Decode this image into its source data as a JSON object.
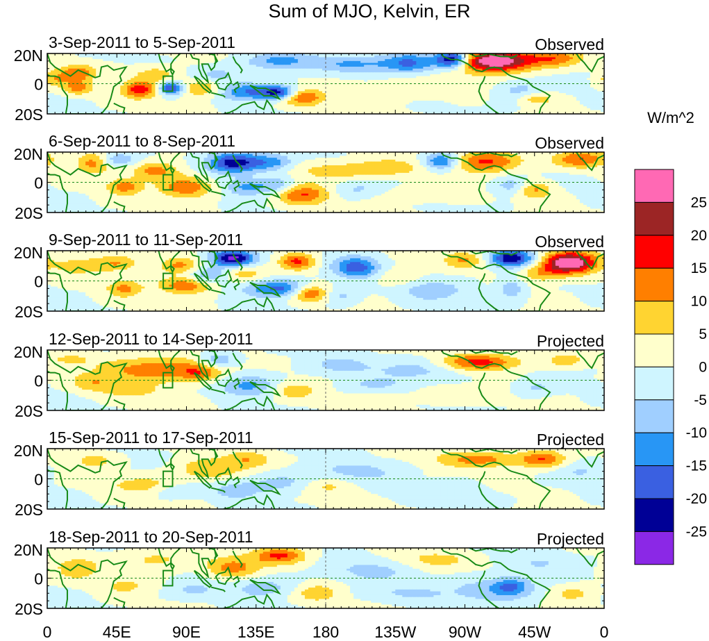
{
  "chart_data": {
    "type": "heatmap",
    "title": "Sum of MJO, Kelvin, ER",
    "x_tick_labels": [
      "0",
      "45E",
      "90E",
      "135E",
      "180",
      "135W",
      "90W",
      "45W",
      "0"
    ],
    "x_range_deg_east": [
      0,
      360
    ],
    "y_tick_labels": [
      "20N",
      "0",
      "20S"
    ],
    "y_range_deg": [
      -20,
      20
    ],
    "colorbar": {
      "unit": "W/m^2",
      "tick_labels": [
        "25",
        "20",
        "15",
        "10",
        "5",
        "0",
        "-5",
        "-10",
        "-15",
        "-20",
        "-25"
      ],
      "levels": [
        25,
        20,
        15,
        10,
        5,
        0,
        -5,
        -10,
        -15,
        -20,
        -25
      ],
      "colors": [
        "#ff69b4",
        "#9c2525",
        "#ff0000",
        "#ff7f00",
        "#ffd431",
        "#ffffcc",
        "#cff5ff",
        "#a0cfff",
        "#2896f5",
        "#3a60e1",
        "#000096",
        "#8b28e6"
      ]
    },
    "panels": [
      {
        "date_range": "3-Sep-2011 to 5-Sep-2011",
        "type_label": "Observed",
        "blobs": [
          [
            262,
            16,
            8,
            4,
            -30
          ],
          [
            290,
            15,
            18,
            5,
            32
          ],
          [
            235,
            14,
            12,
            5,
            -15
          ],
          [
            150,
            15,
            15,
            4,
            -12
          ],
          [
            200,
            13,
            20,
            4,
            -10
          ],
          [
            20,
            7,
            8,
            4,
            14
          ],
          [
            80,
            -3,
            6,
            3,
            -22
          ],
          [
            60,
            -4,
            8,
            4,
            18
          ],
          [
            100,
            -3,
            10,
            4,
            13
          ],
          [
            130,
            -5,
            15,
            4,
            -15
          ],
          [
            150,
            -6,
            8,
            3,
            -18
          ],
          [
            165,
            -9,
            10,
            4,
            15
          ],
          [
            70,
            6,
            10,
            4,
            9
          ],
          [
            330,
            17,
            12,
            4,
            12
          ],
          [
            305,
            -5,
            10,
            5,
            -8
          ],
          [
            315,
            -10,
            8,
            3,
            9
          ],
          [
            240,
            -2,
            25,
            6,
            4
          ],
          [
            20,
            -3,
            6,
            3,
            12
          ],
          [
            5,
            3,
            6,
            4,
            8
          ],
          [
            110,
            6,
            10,
            4,
            -7
          ]
        ]
      },
      {
        "date_range": "6-Sep-2011 to 8-Sep-2011",
        "type_label": "Observed",
        "blobs": [
          [
            120,
            13,
            12,
            5,
            -23
          ],
          [
            145,
            13,
            10,
            4,
            -12
          ],
          [
            255,
            14,
            8,
            4,
            -18
          ],
          [
            285,
            14,
            16,
            5,
            16
          ],
          [
            345,
            15,
            12,
            4,
            15
          ],
          [
            70,
            8,
            10,
            4,
            13
          ],
          [
            90,
            -3,
            12,
            5,
            15
          ],
          [
            50,
            -3,
            8,
            4,
            12
          ],
          [
            165,
            -8,
            12,
            5,
            15
          ],
          [
            130,
            -3,
            10,
            4,
            -12
          ],
          [
            150,
            -2,
            8,
            4,
            -9
          ],
          [
            190,
            8,
            20,
            4,
            9
          ],
          [
            225,
            10,
            15,
            4,
            7
          ],
          [
            30,
            13,
            8,
            5,
            12
          ],
          [
            315,
            -5,
            8,
            4,
            11
          ],
          [
            300,
            -2,
            8,
            4,
            -9
          ],
          [
            200,
            -5,
            12,
            4,
            -6
          ],
          [
            45,
            15,
            8,
            3,
            -10
          ],
          [
            240,
            -8,
            20,
            4,
            4
          ]
        ]
      },
      {
        "date_range": "9-Sep-2011 to 11-Sep-2011",
        "type_label": "Observed",
        "blobs": [
          [
            120,
            15,
            10,
            4,
            -27
          ],
          [
            300,
            15,
            10,
            4,
            -24
          ],
          [
            338,
            12,
            12,
            5,
            32
          ],
          [
            162,
            13,
            8,
            4,
            16
          ],
          [
            200,
            9,
            10,
            5,
            -18
          ],
          [
            270,
            14,
            10,
            4,
            10
          ],
          [
            90,
            -3,
            12,
            4,
            15
          ],
          [
            150,
            -5,
            15,
            4,
            -17
          ],
          [
            170,
            -8,
            8,
            4,
            17
          ],
          [
            50,
            -5,
            8,
            4,
            11
          ],
          [
            45,
            12,
            10,
            4,
            10
          ],
          [
            85,
            10,
            10,
            4,
            12
          ],
          [
            105,
            4,
            10,
            4,
            -10
          ],
          [
            125,
            5,
            10,
            4,
            8
          ],
          [
            250,
            -6,
            15,
            5,
            -8
          ],
          [
            300,
            -5,
            6,
            5,
            -9
          ],
          [
            320,
            5,
            10,
            4,
            9
          ],
          [
            225,
            2,
            10,
            4,
            6
          ],
          [
            20,
            10,
            10,
            4,
            8
          ],
          [
            190,
            -10,
            8,
            4,
            -6
          ]
        ]
      },
      {
        "date_range": "12-Sep-2011 to 14-Sep-2011",
        "type_label": "Projected",
        "blobs": [
          [
            70,
            7,
            25,
            6,
            14
          ],
          [
            100,
            5,
            10,
            4,
            10
          ],
          [
            130,
            -3,
            12,
            5,
            -12
          ],
          [
            110,
            13,
            8,
            4,
            -11
          ],
          [
            280,
            12,
            18,
            4,
            17
          ],
          [
            240,
            7,
            20,
            5,
            -7
          ],
          [
            190,
            10,
            15,
            4,
            -6
          ],
          [
            315,
            -5,
            10,
            4,
            -6
          ],
          [
            30,
            -2,
            10,
            4,
            8
          ],
          [
            55,
            -7,
            12,
            3,
            7
          ],
          [
            160,
            -7,
            10,
            4,
            8
          ],
          [
            335,
            13,
            8,
            3,
            9
          ],
          [
            265,
            -10,
            20,
            4,
            5
          ],
          [
            210,
            -3,
            15,
            3,
            -5
          ],
          [
            15,
            14,
            10,
            3,
            6
          ]
        ]
      },
      {
        "date_range": "15-Sep-2011 to 17-Sep-2011",
        "type_label": "Projected",
        "blobs": [
          [
            105,
            6,
            15,
            5,
            10
          ],
          [
            130,
            13,
            10,
            4,
            9
          ],
          [
            150,
            -3,
            20,
            5,
            -7
          ],
          [
            280,
            13,
            20,
            4,
            12
          ],
          [
            320,
            13,
            10,
            4,
            14
          ],
          [
            60,
            -4,
            15,
            4,
            7
          ],
          [
            30,
            12,
            10,
            4,
            7
          ],
          [
            200,
            5,
            20,
            5,
            -6
          ],
          [
            180,
            -5,
            12,
            4,
            7
          ],
          [
            250,
            -8,
            20,
            4,
            -4
          ],
          [
            120,
            -8,
            10,
            4,
            -6
          ],
          [
            345,
            5,
            10,
            4,
            -5
          ],
          [
            85,
            -8,
            10,
            3,
            -5
          ]
        ]
      },
      {
        "date_range": "18-Sep-2011 to 20-Sep-2011",
        "type_label": "Projected",
        "blobs": [
          [
            150,
            15,
            12,
            4,
            16
          ],
          [
            120,
            7,
            12,
            5,
            12
          ],
          [
            70,
            12,
            15,
            5,
            7
          ],
          [
            20,
            7,
            10,
            5,
            9
          ],
          [
            290,
            -8,
            20,
            6,
            -9
          ],
          [
            300,
            -5,
            8,
            4,
            -11
          ],
          [
            140,
            -6,
            15,
            5,
            -7
          ],
          [
            175,
            -10,
            10,
            4,
            9
          ],
          [
            210,
            5,
            20,
            5,
            -6
          ],
          [
            250,
            12,
            15,
            4,
            7
          ],
          [
            320,
            10,
            12,
            4,
            -5
          ],
          [
            50,
            -5,
            10,
            4,
            6
          ],
          [
            95,
            -8,
            10,
            4,
            -6
          ],
          [
            230,
            -10,
            20,
            4,
            -5
          ],
          [
            340,
            -10,
            10,
            4,
            7
          ]
        ]
      }
    ]
  }
}
